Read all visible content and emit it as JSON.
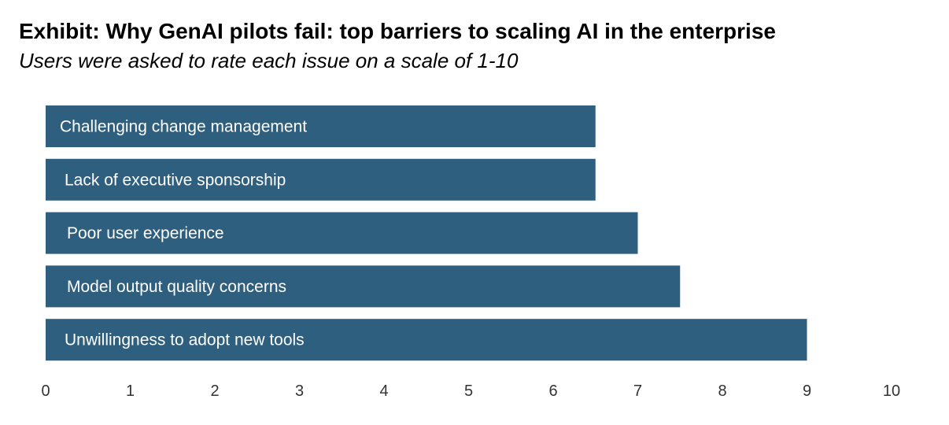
{
  "title": "Exhibit: Why GenAI pilots fail: top barriers to scaling AI in the enterprise",
  "subtitle": "Users were asked to rate each issue on a scale of 1-10",
  "chart_data": {
    "type": "bar",
    "orientation": "horizontal",
    "title": "Exhibit: Why GenAI pilots fail: top barriers to scaling AI in the enterprise",
    "subtitle": "Users were asked to rate each issue on a scale of 1-10",
    "categories": [
      "Challenging change management",
      "Lack of executive sponsorship",
      "Poor user experience",
      "Model output quality concerns",
      "Unwillingness to adopt new tools"
    ],
    "values": [
      6.5,
      6.5,
      7.0,
      7.5,
      9.0
    ],
    "xlim": [
      0,
      10
    ],
    "xticks": [
      "0",
      "1",
      "2",
      "3",
      "4",
      "5",
      "6",
      "7",
      "8",
      "9",
      "10"
    ],
    "grid": false,
    "bar_color": "#2F5F7F",
    "label_color": "#FFFFFF",
    "tick_color": "#333333"
  }
}
